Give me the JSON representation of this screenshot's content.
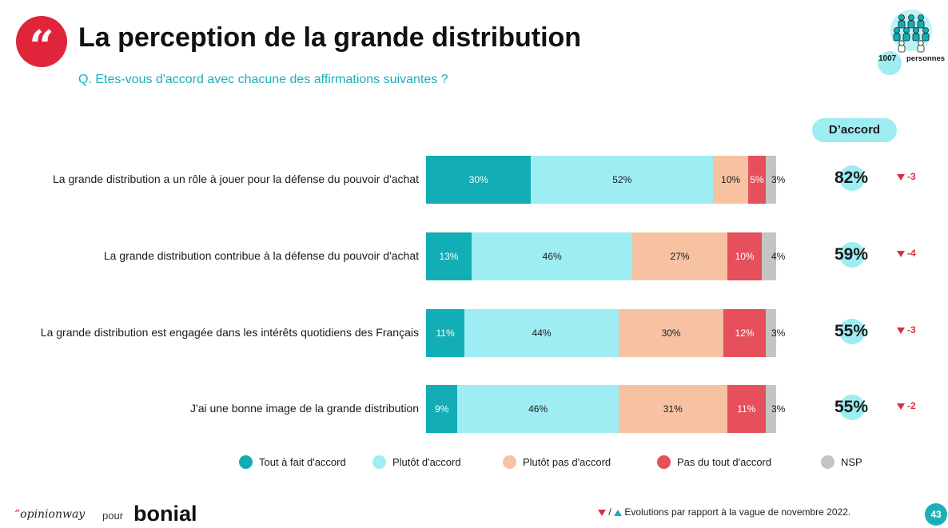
{
  "header": {
    "quote_glyph": "“",
    "title": "La perception de la grande distribution",
    "question": "Q. Etes-vous d'accord avec chacune des affirmations suivantes ?",
    "sample_count": "1007",
    "sample_label": "personnes"
  },
  "accord_header": "D’accord",
  "colors": {
    "tout_a_fait": "#13adb5",
    "plutot": "#9eedf2",
    "plutot_pas": "#f6c2a2",
    "pas_du_tout": "#e5505c",
    "nsp": "#c4c4c4",
    "accent": "#1bb0b8",
    "brand_red": "#e0253a"
  },
  "chart_data": {
    "type": "bar",
    "orientation": "horizontal",
    "stacked": true,
    "categories": [
      "La grande distribution a un rôle à jouer pour la défense du pouvoir d'achat",
      "La grande distribution contribue à la défense du pouvoir d'achat",
      "La grande distribution est engagée dans les intérêts quotidiens des Français",
      "J'ai une bonne image de la grande distribution"
    ],
    "series": [
      {
        "name": "Tout à fait d'accord",
        "values": [
          30,
          13,
          11,
          9
        ],
        "labels": [
          "30%",
          "13%",
          "11%",
          "9%"
        ]
      },
      {
        "name": "Plutôt d'accord",
        "values": [
          52,
          46,
          44,
          46
        ],
        "labels": [
          "52%",
          "46%",
          "44%",
          "46%"
        ]
      },
      {
        "name": "Plutôt pas d'accord",
        "values": [
          10,
          27,
          30,
          31
        ],
        "labels": [
          "10%",
          "27%",
          "30%",
          "31%"
        ]
      },
      {
        "name": "Pas du tout d'accord",
        "values": [
          5,
          10,
          12,
          11
        ],
        "labels": [
          "5%",
          "10%",
          "12%",
          "11%"
        ]
      },
      {
        "name": "NSP",
        "values": [
          3,
          4,
          3,
          3
        ],
        "labels": [
          "3%",
          "4%",
          "3%",
          "3%"
        ]
      }
    ],
    "daccord": [
      "82%",
      "59%",
      "55%",
      "55%"
    ],
    "evolutions": [
      "-3",
      "-4",
      "-3",
      "-2"
    ],
    "evolution_direction": [
      "down",
      "down",
      "down",
      "down"
    ],
    "legend_position": "bottom"
  },
  "footer": {
    "brand1": "opinionway",
    "brand1_quote": "“",
    "pour": "pour",
    "brand2": "bonial",
    "slash": " / ",
    "footnote": "Evolutions par rapport à la vague de novembre 2022.",
    "page": "43"
  }
}
